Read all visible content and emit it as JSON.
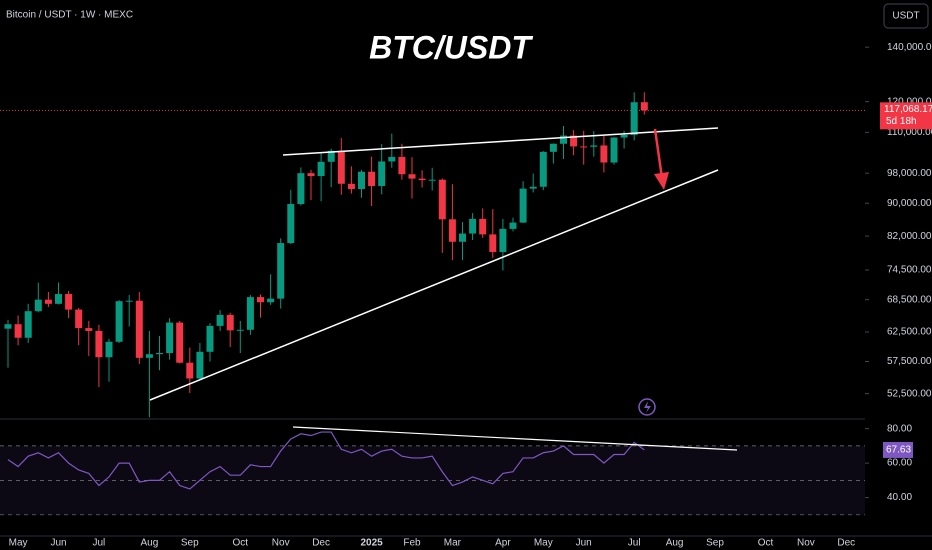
{
  "chart_data": [
    {
      "type": "candlestick",
      "title": "BTC/USDT",
      "subtitle": "Bitcoin / USDT · 1W · MEXC",
      "currency": "USDT",
      "categories": [
        null,
        "May",
        null,
        null,
        null,
        "Jun",
        null,
        null,
        null,
        "Jul",
        null,
        null,
        null,
        null,
        "Aug",
        null,
        null,
        null,
        "Sep",
        null,
        null,
        null,
        null,
        "Oct",
        null,
        null,
        null,
        "Nov",
        null,
        null,
        null,
        "Dec",
        null,
        null,
        null,
        null,
        "2025",
        null,
        null,
        null,
        "Feb",
        null,
        null,
        null,
        "Mar",
        null,
        null,
        null,
        null,
        "Apr",
        null,
        null,
        null,
        "May",
        null,
        null,
        null,
        "Jun",
        null,
        null,
        null,
        null,
        "Jul",
        null,
        null,
        null,
        "Aug",
        null,
        null,
        null,
        "Sep",
        null,
        null,
        null,
        null,
        "Oct",
        null,
        null,
        null,
        "Nov",
        null,
        null,
        null,
        "Dec"
      ],
      "open": [
        63100,
        63900,
        61500,
        66300,
        68500,
        67700,
        69600,
        66600,
        63200,
        62700,
        58200,
        60800,
        68200,
        68300,
        58100,
        58700,
        58900,
        64200,
        57300,
        54800,
        59100,
        63600,
        65600,
        62800,
        62900,
        69000,
        68000,
        68700,
        80400,
        89800,
        98000,
        97200,
        101200,
        104400,
        95100,
        93700,
        98400,
        94500,
        101300,
        102600,
        97700,
        96500,
        96100,
        96200,
        86000,
        80700,
        82600,
        86100,
        82400,
        78400,
        83700,
        85200,
        93800,
        94300,
        104100,
        106500,
        109000,
        105700,
        105600,
        106000,
        101000,
        108400,
        109200,
        119800,
        null,
        null,
        null,
        null,
        null,
        null,
        null,
        null,
        null,
        null,
        null,
        null,
        null,
        null,
        null,
        null,
        null,
        null,
        null,
        null
      ],
      "high": [
        64700,
        65500,
        67700,
        71900,
        70000,
        71900,
        70200,
        66900,
        64500,
        63800,
        61300,
        68400,
        69400,
        70000,
        62700,
        61800,
        65000,
        64500,
        59800,
        60600,
        64100,
        66500,
        66000,
        64500,
        69400,
        69500,
        73600,
        81500,
        93500,
        99600,
        98900,
        103900,
        105000,
        108300,
        99900,
        98900,
        102700,
        106400,
        109600,
        106500,
        102500,
        98800,
        99500,
        96500,
        95000,
        85300,
        87500,
        88700,
        88500,
        86100,
        86400,
        95800,
        97900,
        104300,
        106600,
        112000,
        110700,
        110500,
        110400,
        108900,
        108500,
        110500,
        123200,
        123200,
        null,
        null,
        null,
        null,
        null,
        null,
        null,
        null,
        null,
        null,
        null,
        null,
        null,
        null,
        null,
        null,
        null,
        null,
        null,
        null
      ],
      "low": [
        56500,
        60200,
        60600,
        66100,
        67100,
        67600,
        65000,
        60200,
        58400,
        53500,
        54300,
        60600,
        63500,
        57100,
        49100,
        56100,
        57800,
        57200,
        52600,
        54600,
        57500,
        62700,
        59900,
        58900,
        62000,
        65100,
        67500,
        66800,
        80200,
        89400,
        90800,
        90500,
        94200,
        92200,
        92500,
        91400,
        89300,
        92300,
        99500,
        96200,
        91200,
        94100,
        93300,
        78200,
        76600,
        76600,
        81100,
        81600,
        77100,
        74400,
        83100,
        85100,
        92800,
        93400,
        100700,
        102000,
        103100,
        100400,
        102700,
        98200,
        100400,
        105100,
        107500,
        115700,
        null,
        null,
        null,
        null,
        null,
        null,
        null,
        null,
        null,
        null,
        null,
        null,
        null,
        null,
        null,
        null,
        null,
        null,
        null,
        null
      ],
      "close": [
        63900,
        61500,
        66300,
        68500,
        67700,
        69600,
        66600,
        63200,
        62700,
        58200,
        60800,
        68200,
        68300,
        58100,
        58700,
        58900,
        64200,
        57300,
        54800,
        59100,
        63600,
        65600,
        62800,
        62900,
        69000,
        68000,
        68700,
        80400,
        89800,
        98000,
        97200,
        101200,
        104400,
        95100,
        93700,
        98400,
        94500,
        101300,
        102600,
        97700,
        96500,
        96100,
        96200,
        86000,
        80700,
        82600,
        86100,
        82400,
        78400,
        83700,
        85200,
        93800,
        94300,
        104100,
        106500,
        109000,
        105700,
        105600,
        106000,
        101000,
        108400,
        109200,
        119800,
        117068.17,
        null,
        null,
        null,
        null,
        null,
        null,
        null,
        null,
        null,
        null,
        null,
        null,
        null,
        null,
        null,
        null,
        null,
        null,
        null,
        null
      ],
      "up_color": "#089981",
      "down_color": "#f23645",
      "log_scale": true,
      "ylim": [
        49000,
        160000
      ],
      "yticks": [
        {
          "value": 52500,
          "label": "52,500.00"
        },
        {
          "value": 57500,
          "label": "57,500.00"
        },
        {
          "value": 62500,
          "label": "62,500.00"
        },
        {
          "value": 68500,
          "label": "68,500.00"
        },
        {
          "value": 74500,
          "label": "74,500.00"
        },
        {
          "value": 82000,
          "label": "82,000.00"
        },
        {
          "value": 90000,
          "label": "90,000.00"
        },
        {
          "value": 98000,
          "label": "98,000.00"
        },
        {
          "value": 110000,
          "label": "110,000.00"
        },
        {
          "value": 120000,
          "label": "120,000.00"
        },
        {
          "value": 140000,
          "label": "140,000.00"
        }
      ],
      "last_price": {
        "value": 117068.17,
        "label": "117,068.17"
      },
      "countdown": "5d 18h"
    },
    {
      "type": "line",
      "color": "#7e57c2",
      "values": [
        62,
        58,
        64,
        66,
        63,
        66,
        60,
        56,
        54,
        47,
        52,
        60,
        60,
        49,
        50,
        50,
        55,
        47,
        45,
        50,
        55,
        58,
        53,
        53,
        59,
        58,
        58,
        67,
        74,
        77,
        76,
        78,
        78,
        68,
        66,
        68,
        64,
        67,
        68,
        64,
        63,
        63,
        64,
        55,
        47,
        49,
        52,
        50,
        48,
        54,
        55,
        63,
        63,
        66,
        67,
        70,
        65,
        65,
        65,
        60,
        65,
        65,
        72,
        67.63,
        null,
        null,
        null,
        null,
        null,
        null,
        null,
        null,
        null,
        null,
        null,
        null,
        null,
        null,
        null,
        null,
        null,
        null,
        null,
        null
      ],
      "ylim": [
        27,
        85
      ],
      "yticks": [
        {
          "value": 40,
          "label": "40.00"
        },
        {
          "value": 60,
          "label": "60.00"
        },
        {
          "value": 80,
          "label": "80.00"
        }
      ]
    }
  ]
}
